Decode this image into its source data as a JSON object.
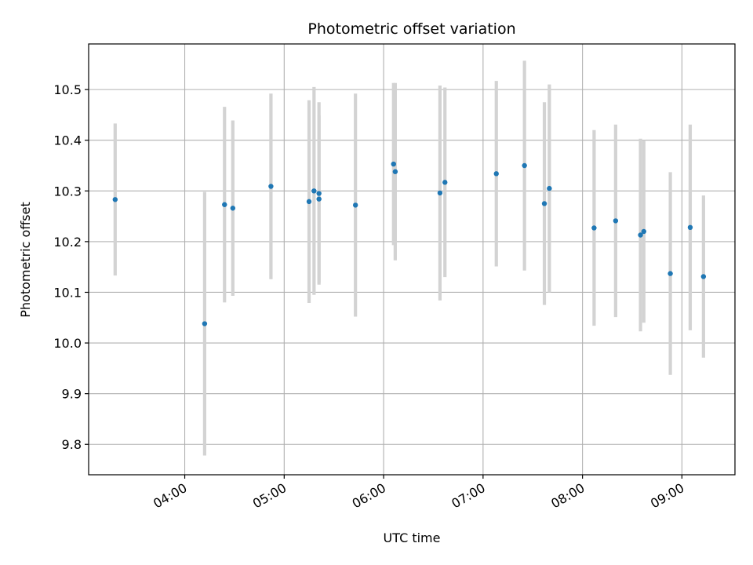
{
  "chart_data": {
    "type": "scatter",
    "title": "Photometric offset variation",
    "xlabel": "UTC time",
    "ylabel": "Photometric offset",
    "x_ticks": [
      "04:00",
      "05:00",
      "06:00",
      "07:00",
      "08:00",
      "09:00"
    ],
    "y_ticks": [
      "9.8",
      "9.9",
      "10.0",
      "10.1",
      "10.2",
      "10.3",
      "10.4",
      "10.5"
    ],
    "xlim": [
      "03:02",
      "09:32"
    ],
    "ylim": [
      9.74,
      10.59
    ],
    "grid": true,
    "colors": {
      "marker": "#1f77b4",
      "errorbar": "#d3d3d3",
      "grid": "#b0b0b0"
    },
    "points": [
      {
        "x": "03:18",
        "y": 10.283,
        "err": 0.15
      },
      {
        "x": "04:12",
        "y": 10.038,
        "err": 0.26
      },
      {
        "x": "04:24",
        "y": 10.273,
        "err": 0.193
      },
      {
        "x": "04:29",
        "y": 10.266,
        "err": 0.173
      },
      {
        "x": "04:52",
        "y": 10.309,
        "err": 0.183
      },
      {
        "x": "05:15",
        "y": 10.279,
        "err": 0.2
      },
      {
        "x": "05:18",
        "y": 10.3,
        "err": 0.205
      },
      {
        "x": "05:21",
        "y": 10.284,
        "err": 0.165
      },
      {
        "x": "05:21",
        "y": 10.295,
        "err": 0.18
      },
      {
        "x": "05:43",
        "y": 10.272,
        "err": 0.22
      },
      {
        "x": "06:06",
        "y": 10.353,
        "err": 0.16
      },
      {
        "x": "06:07",
        "y": 10.338,
        "err": 0.175
      },
      {
        "x": "06:34",
        "y": 10.296,
        "err": 0.212
      },
      {
        "x": "06:37",
        "y": 10.317,
        "err": 0.187
      },
      {
        "x": "07:08",
        "y": 10.334,
        "err": 0.183
      },
      {
        "x": "07:25",
        "y": 10.35,
        "err": 0.207
      },
      {
        "x": "07:37",
        "y": 10.275,
        "err": 0.2
      },
      {
        "x": "07:40",
        "y": 10.305,
        "err": 0.205
      },
      {
        "x": "08:07",
        "y": 10.227,
        "err": 0.193
      },
      {
        "x": "08:20",
        "y": 10.241,
        "err": 0.19
      },
      {
        "x": "08:35",
        "y": 10.213,
        "err": 0.19
      },
      {
        "x": "08:37",
        "y": 10.22,
        "err": 0.18
      },
      {
        "x": "08:53",
        "y": 10.137,
        "err": 0.2
      },
      {
        "x": "09:05",
        "y": 10.228,
        "err": 0.203
      },
      {
        "x": "09:13",
        "y": 10.131,
        "err": 0.16
      }
    ]
  }
}
